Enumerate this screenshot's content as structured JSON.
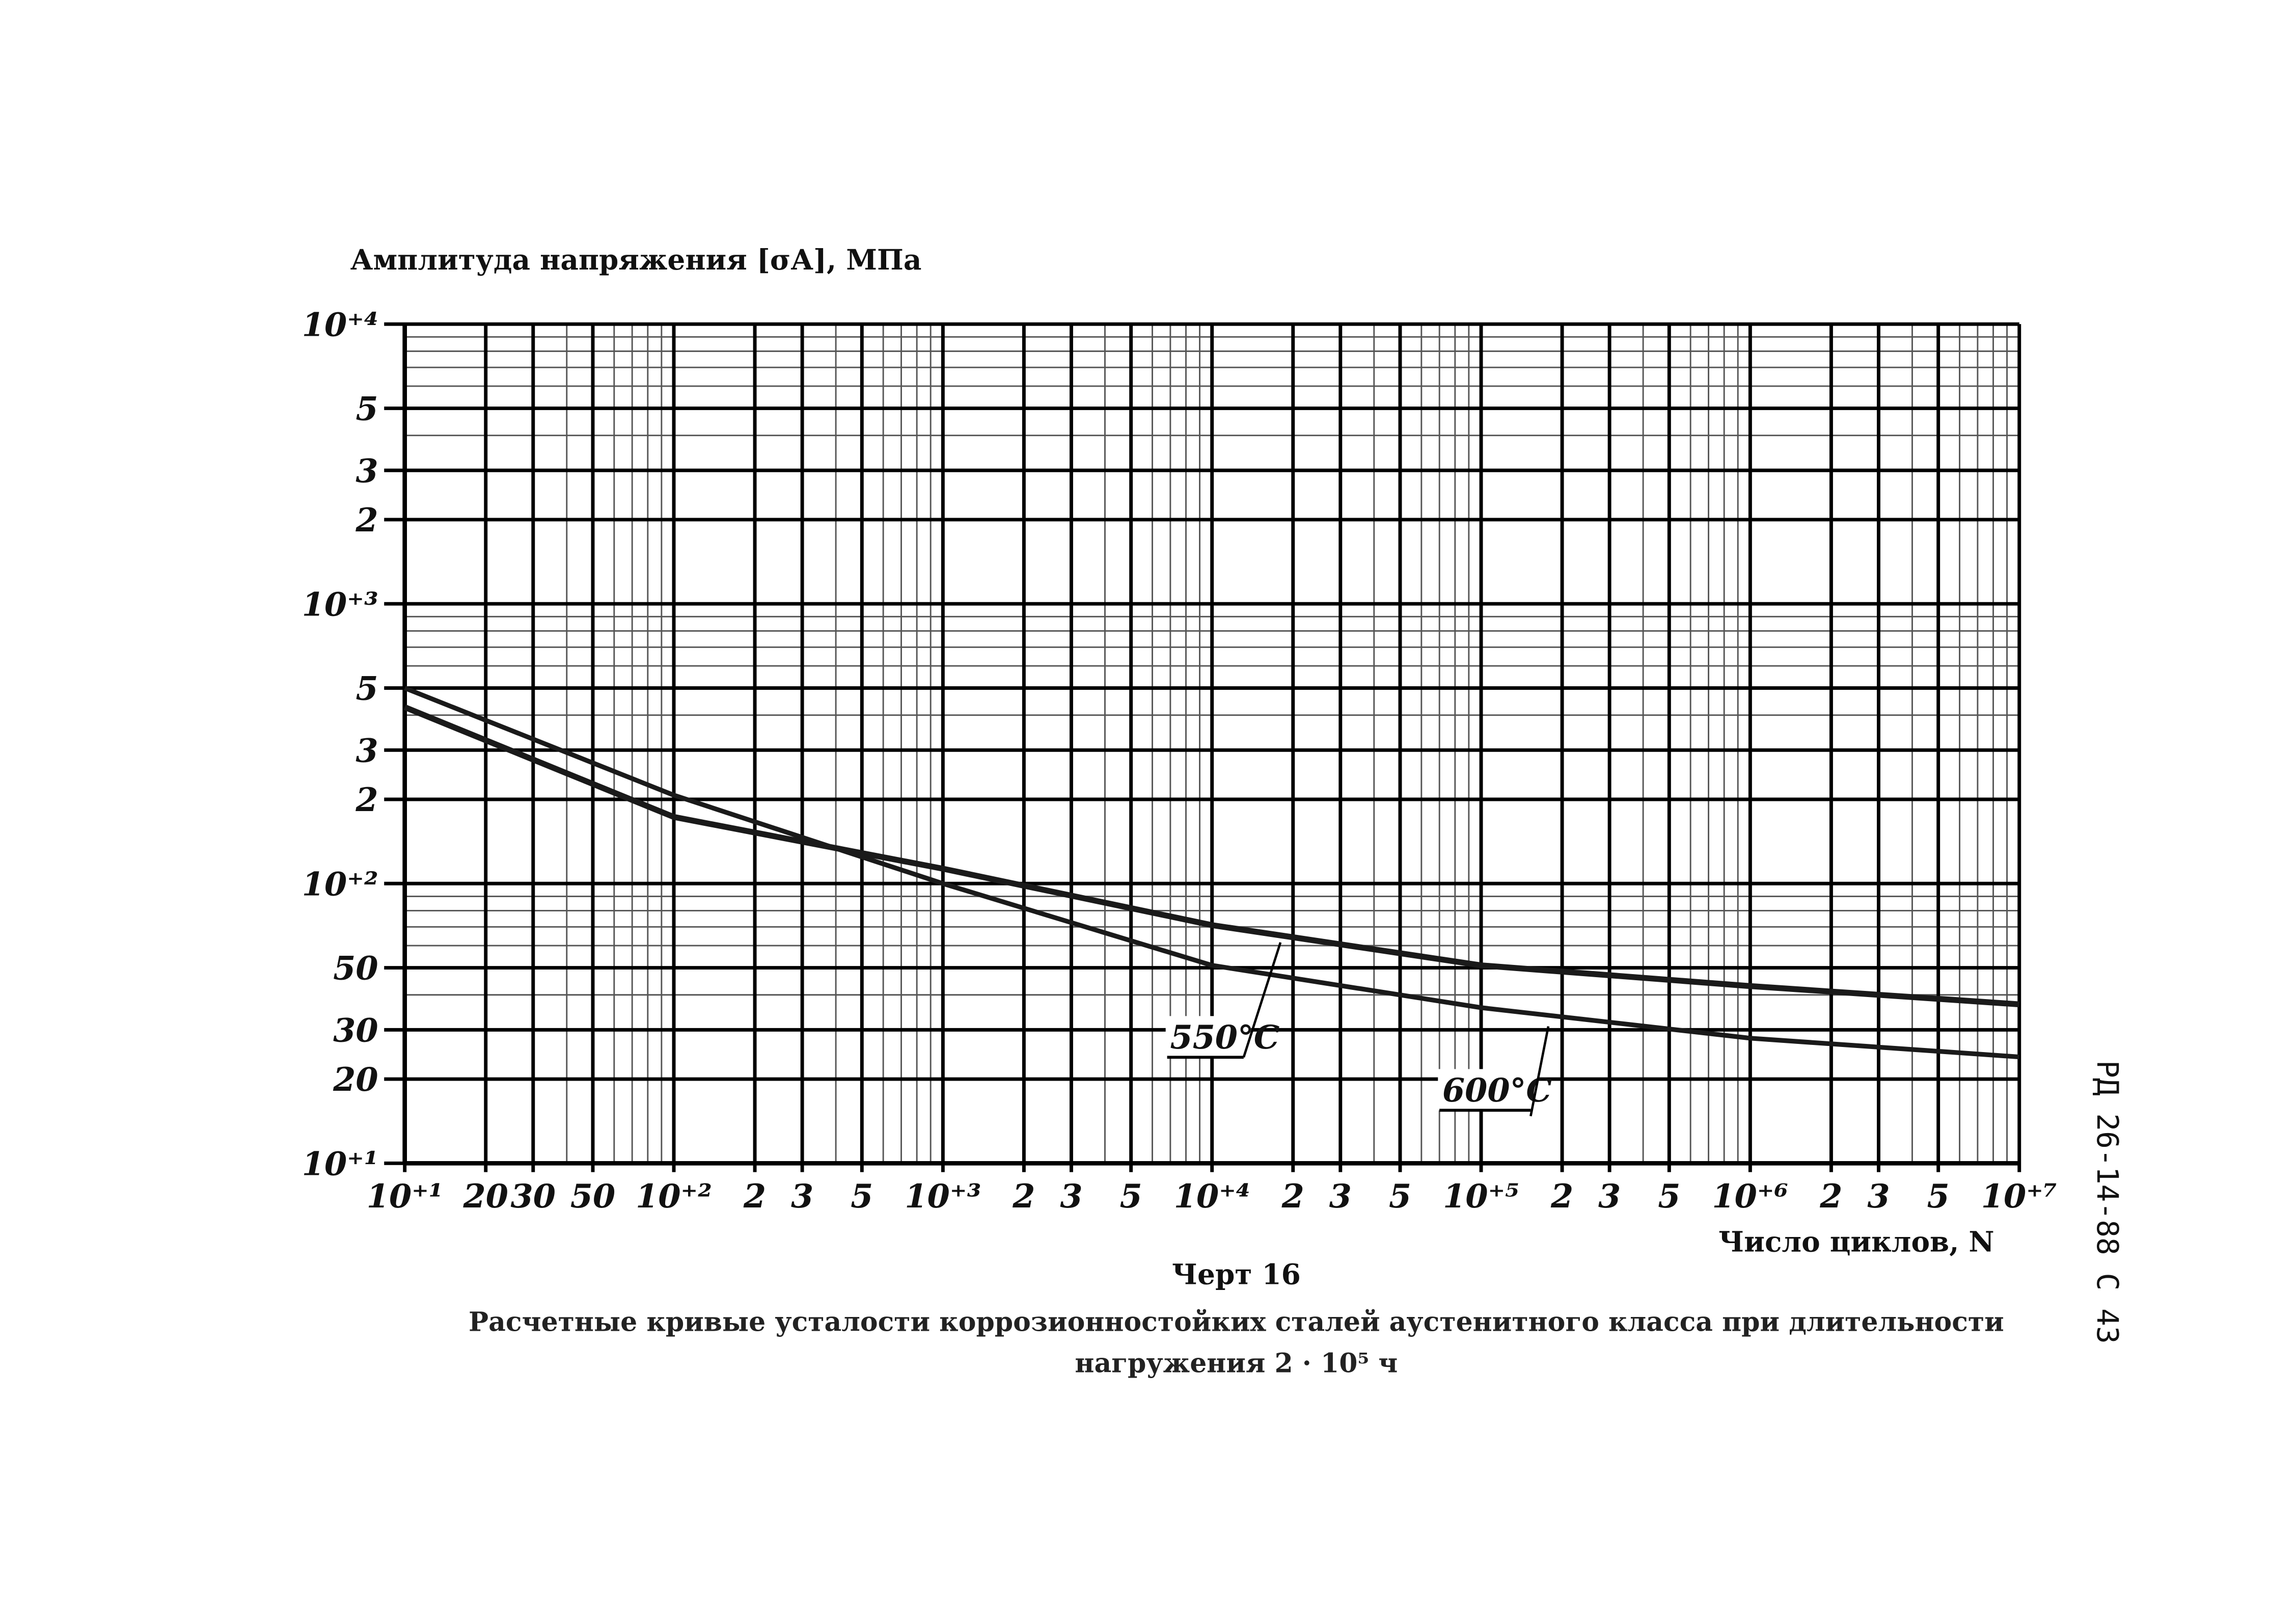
{
  "chart_data": {
    "type": "line",
    "y_label": "Амплитуда напряжения [σА], МПа",
    "x_label": "Число циклов, N",
    "figure_number": "Черт 16",
    "caption": "Расчетные кривые усталости коррозионностойких сталей аустенитного класса при длительности нагружения 2 · 10⁵ ч",
    "document_code": "РД 26-14-88 С 43",
    "x_scale": "log",
    "y_scale": "log",
    "grid": true,
    "minor_grid": true,
    "xlim": [
      10,
      10000000
    ],
    "ylim": [
      10,
      10000
    ],
    "xticks": [
      {
        "value": 10,
        "label": "10⁺¹"
      },
      20,
      30,
      50,
      {
        "value": 100,
        "label": "10⁺²"
      },
      {
        "value": 200,
        "label": "2"
      },
      {
        "value": 300,
        "label": "3"
      },
      {
        "value": 500,
        "label": "5"
      },
      {
        "value": 1000,
        "label": "10⁺³"
      },
      {
        "value": 2000,
        "label": "2"
      },
      {
        "value": 3000,
        "label": "3"
      },
      {
        "value": 5000,
        "label": "5"
      },
      {
        "value": 10000,
        "label": "10⁺⁴"
      },
      {
        "value": 20000,
        "label": "2"
      },
      {
        "value": 30000,
        "label": "3"
      },
      {
        "value": 50000,
        "label": "5"
      },
      {
        "value": 100000,
        "label": "10⁺⁵"
      },
      {
        "value": 200000,
        "label": "2"
      },
      {
        "value": 300000,
        "label": "3"
      },
      {
        "value": 500000,
        "label": "5"
      },
      {
        "value": 1000000,
        "label": "10⁺⁶"
      },
      {
        "value": 2000000,
        "label": "2"
      },
      {
        "value": 3000000,
        "label": "3"
      },
      {
        "value": 5000000,
        "label": "5"
      },
      {
        "value": 10000000,
        "label": "10⁺⁷"
      }
    ],
    "yticks": [
      {
        "value": 10,
        "label": "10⁺¹"
      },
      20,
      30,
      50,
      {
        "value": 100,
        "label": "10⁺²"
      },
      {
        "value": 200,
        "label": "2"
      },
      {
        "value": 300,
        "label": "3"
      },
      {
        "value": 500,
        "label": "5"
      },
      {
        "value": 1000,
        "label": "10⁺³"
      },
      {
        "value": 2000,
        "label": "2"
      },
      {
        "value": 3000,
        "label": "3"
      },
      {
        "value": 5000,
        "label": "5"
      },
      {
        "value": 10000,
        "label": "10⁺⁴"
      }
    ],
    "x": [
      10,
      100,
      1000,
      10000,
      100000,
      1000000,
      10000000
    ],
    "series": [
      {
        "name": "550°C",
        "color": "#1a1a1a",
        "values": [
          427,
          173,
          113,
          71,
          51,
          43,
          37
        ]
      },
      {
        "name": "600°C",
        "color": "#1a1a1a",
        "values": [
          500,
          207,
          100,
          51,
          36,
          28,
          24
        ]
      }
    ]
  }
}
